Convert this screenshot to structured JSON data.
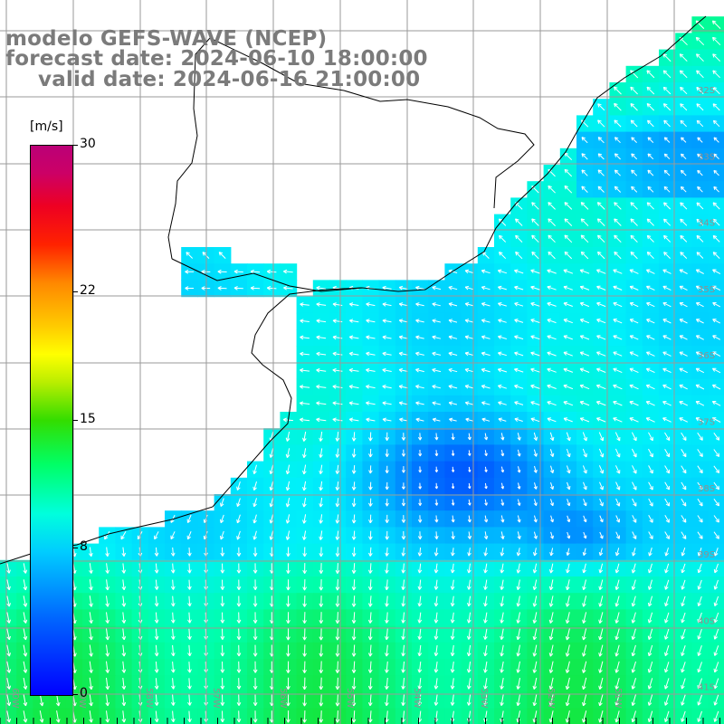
{
  "titles": {
    "line1": "modelo GEFS-WAVE (NCEP)",
    "line2": "forecast date: 2024-06-10 18:00:00",
    "line3": "valid date: 2024-06-16 21:00:00"
  },
  "colorbar": {
    "unit": "[m/s]",
    "labels": [
      "30",
      "22",
      "15",
      "8",
      "0"
    ],
    "values": [
      30,
      22,
      15,
      8,
      0
    ]
  },
  "lon_labels": [
    "60W",
    "59W",
    "58W",
    "57W",
    "56W",
    "55W",
    "54W",
    "53W",
    "52W",
    "51W"
  ],
  "lat_labels": [
    "32S",
    "33S",
    "34S",
    "35S",
    "36S",
    "37S",
    "38S",
    "39S",
    "40S",
    "41S"
  ],
  "colors": {
    "land": "#ffffff",
    "grid": "#9a9a9a",
    "coast": "#000000",
    "arrow": "#ffffff",
    "title": "#7b7b7b"
  },
  "map_extent": {
    "lon": [
      -61,
      -50
    ],
    "lat": [
      -41,
      -30.5
    ]
  }
}
